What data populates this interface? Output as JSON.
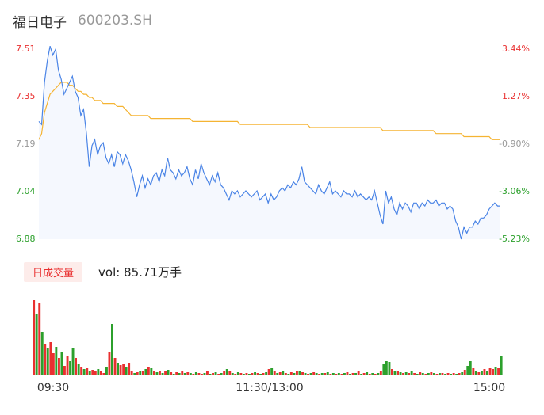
{
  "header": {
    "stock_name": "福日电子",
    "stock_code": "600203.SH"
  },
  "volume_panel": {
    "tab_label": "日成交量",
    "vol_text": "vol: 85.71万手"
  },
  "colors": {
    "up": "#e93030",
    "down": "#2ca02c",
    "neutral": "#999999",
    "price_line": "#4a84e6",
    "avg_line": "#f5b433",
    "area_fill": "#f5f8fe"
  },
  "chart_data": {
    "type": "line",
    "price_ticks": [
      "7.51",
      "7.35",
      "7.19",
      "7.04",
      "6.88"
    ],
    "percent_ticks": [
      "3.44%",
      "1.27%",
      "-0.90%",
      "-3.06%",
      "-5.23%"
    ],
    "time_ticks": [
      "09:30",
      "11:30/13:00",
      "15:00"
    ],
    "y_range": [
      6.88,
      7.51
    ],
    "prev_close": 7.26,
    "price_series": [
      7.27,
      7.26,
      7.4,
      7.47,
      7.52,
      7.49,
      7.51,
      7.44,
      7.41,
      7.36,
      7.38,
      7.4,
      7.42,
      7.37,
      7.35,
      7.29,
      7.31,
      7.23,
      7.12,
      7.19,
      7.21,
      7.16,
      7.19,
      7.2,
      7.15,
      7.13,
      7.16,
      7.12,
      7.17,
      7.16,
      7.13,
      7.16,
      7.14,
      7.11,
      7.07,
      7.02,
      7.06,
      7.09,
      7.05,
      7.08,
      7.06,
      7.09,
      7.1,
      7.07,
      7.11,
      7.09,
      7.15,
      7.11,
      7.1,
      7.08,
      7.11,
      7.09,
      7.1,
      7.12,
      7.08,
      7.06,
      7.11,
      7.08,
      7.13,
      7.1,
      7.08,
      7.06,
      7.09,
      7.07,
      7.1,
      7.06,
      7.05,
      7.03,
      7.01,
      7.04,
      7.03,
      7.04,
      7.02,
      7.03,
      7.04,
      7.03,
      7.02,
      7.03,
      7.04,
      7.01,
      7.02,
      7.03,
      7.0,
      7.03,
      7.01,
      7.02,
      7.04,
      7.05,
      7.04,
      7.06,
      7.05,
      7.07,
      7.06,
      7.08,
      7.12,
      7.07,
      7.06,
      7.05,
      7.04,
      7.03,
      7.06,
      7.04,
      7.03,
      7.05,
      7.07,
      7.03,
      7.04,
      7.03,
      7.02,
      7.04,
      7.03,
      7.03,
      7.02,
      7.04,
      7.02,
      7.03,
      7.02,
      7.01,
      7.02,
      7.01,
      7.04,
      7.0,
      6.96,
      6.93,
      7.04,
      7.0,
      7.02,
      6.98,
      6.96,
      7.0,
      6.98,
      7.0,
      6.99,
      6.97,
      7.0,
      7.0,
      6.98,
      7.0,
      6.99,
      7.01,
      7.0,
      7.0,
      7.01,
      6.99,
      7.0,
      7.0,
      6.98,
      6.99,
      6.98,
      6.94,
      6.92,
      6.88,
      6.92,
      6.9,
      6.92,
      6.92,
      6.94,
      6.93,
      6.95,
      6.95,
      6.96,
      6.98,
      6.99,
      7.0,
      6.99,
      6.99
    ],
    "avg_series": [
      7.21,
      7.23,
      7.3,
      7.33,
      7.36,
      7.37,
      7.38,
      7.39,
      7.4,
      7.4,
      7.4,
      7.39,
      7.39,
      7.38,
      7.37,
      7.37,
      7.36,
      7.36,
      7.35,
      7.35,
      7.34,
      7.34,
      7.34,
      7.33,
      7.33,
      7.33,
      7.33,
      7.33,
      7.32,
      7.32,
      7.32,
      7.31,
      7.3,
      7.29,
      7.29,
      7.29,
      7.29,
      7.29,
      7.29,
      7.29,
      7.28,
      7.28,
      7.28,
      7.28,
      7.28,
      7.28,
      7.28,
      7.28,
      7.28,
      7.28,
      7.28,
      7.28,
      7.28,
      7.28,
      7.28,
      7.27,
      7.27,
      7.27,
      7.27,
      7.27,
      7.27,
      7.27,
      7.27,
      7.27,
      7.27,
      7.27,
      7.27,
      7.27,
      7.27,
      7.27,
      7.27,
      7.27,
      7.26,
      7.26,
      7.26,
      7.26,
      7.26,
      7.26,
      7.26,
      7.26,
      7.26,
      7.26,
      7.26,
      7.26,
      7.26,
      7.26,
      7.26,
      7.26,
      7.26,
      7.26,
      7.26,
      7.26,
      7.26,
      7.26,
      7.26,
      7.26,
      7.26,
      7.25,
      7.25,
      7.25,
      7.25,
      7.25,
      7.25,
      7.25,
      7.25,
      7.25,
      7.25,
      7.25,
      7.25,
      7.25,
      7.25,
      7.25,
      7.25,
      7.25,
      7.25,
      7.25,
      7.25,
      7.25,
      7.25,
      7.25,
      7.25,
      7.25,
      7.25,
      7.24,
      7.24,
      7.24,
      7.24,
      7.24,
      7.24,
      7.24,
      7.24,
      7.24,
      7.24,
      7.24,
      7.24,
      7.24,
      7.24,
      7.24,
      7.24,
      7.24,
      7.24,
      7.24,
      7.23,
      7.23,
      7.23,
      7.23,
      7.23,
      7.23,
      7.23,
      7.23,
      7.23,
      7.23,
      7.22,
      7.22,
      7.22,
      7.22,
      7.22,
      7.22,
      7.22,
      7.22,
      7.22,
      7.22,
      7.21,
      7.21,
      7.21,
      7.21
    ],
    "volume_series": [
      95,
      78,
      92,
      55,
      40,
      35,
      42,
      28,
      36,
      22,
      30,
      12,
      25,
      18,
      34,
      22,
      15,
      10,
      8,
      9,
      6,
      7,
      5,
      8,
      6,
      3,
      11,
      30,
      65,
      22,
      16,
      13,
      14,
      10,
      16,
      5,
      3,
      4,
      6,
      5,
      8,
      10,
      9,
      5,
      4,
      6,
      3,
      5,
      7,
      4,
      2,
      4,
      3,
      5,
      3,
      4,
      3,
      2,
      4,
      3,
      2,
      3,
      5,
      2,
      3,
      4,
      2,
      3,
      6,
      8,
      5,
      3,
      2,
      4,
      3,
      2,
      3,
      2,
      3,
      4,
      3,
      2,
      3,
      4,
      8,
      9,
      5,
      3,
      4,
      6,
      3,
      2,
      4,
      3,
      5,
      6,
      4,
      3,
      2,
      3,
      4,
      3,
      2,
      3,
      3,
      4,
      2,
      3,
      2,
      3,
      2,
      3,
      4,
      2,
      3,
      3,
      5,
      2,
      3,
      4,
      2,
      3,
      2,
      3,
      5,
      14,
      18,
      17,
      8,
      6,
      5,
      4,
      3,
      4,
      3,
      5,
      3,
      2,
      4,
      3,
      2,
      3,
      4,
      3,
      2,
      3,
      3,
      2,
      3,
      2,
      3,
      2,
      3,
      4,
      7,
      12,
      18,
      9,
      6,
      4,
      5,
      8,
      6,
      9,
      8,
      10,
      9,
      24
    ],
    "volume_colors": [
      "up",
      "down",
      "up",
      "down",
      "up",
      "down",
      "up",
      "up",
      "down",
      "up",
      "down",
      "up",
      "up",
      "down",
      "down",
      "up",
      "down",
      "up",
      "down",
      "up",
      "down",
      "up",
      "up",
      "down",
      "up",
      "up",
      "down",
      "up",
      "down",
      "up",
      "down",
      "up",
      "up",
      "down",
      "up",
      "up",
      "down",
      "up",
      "down",
      "up",
      "down",
      "up",
      "down",
      "up",
      "down",
      "up",
      "down",
      "up",
      "down",
      "up",
      "down",
      "up",
      "down",
      "up",
      "down",
      "up",
      "down",
      "up",
      "down",
      "up",
      "up",
      "down",
      "up",
      "down",
      "up",
      "down",
      "up",
      "down",
      "up",
      "down",
      "up",
      "down",
      "up",
      "down",
      "up",
      "down",
      "up",
      "down",
      "up",
      "down",
      "up",
      "down",
      "up",
      "down",
      "up",
      "down",
      "up",
      "down",
      "up",
      "down",
      "up",
      "down",
      "up",
      "down",
      "up",
      "down",
      "up",
      "down",
      "up",
      "down",
      "up",
      "down",
      "up",
      "down",
      "up",
      "down",
      "up",
      "down",
      "up",
      "down",
      "up",
      "down",
      "up",
      "down",
      "up",
      "down",
      "up",
      "down",
      "up",
      "down",
      "up",
      "down",
      "up",
      "down",
      "up",
      "down",
      "down",
      "down",
      "up",
      "down",
      "up",
      "down",
      "up",
      "down",
      "up",
      "down",
      "up",
      "down",
      "up",
      "down",
      "up",
      "down",
      "up",
      "down",
      "up",
      "down",
      "up",
      "down",
      "up",
      "down",
      "up",
      "down",
      "up",
      "down",
      "up",
      "down",
      "down",
      "up",
      "down",
      "up",
      "down",
      "up",
      "down",
      "up",
      "up",
      "down",
      "up",
      "down"
    ]
  }
}
